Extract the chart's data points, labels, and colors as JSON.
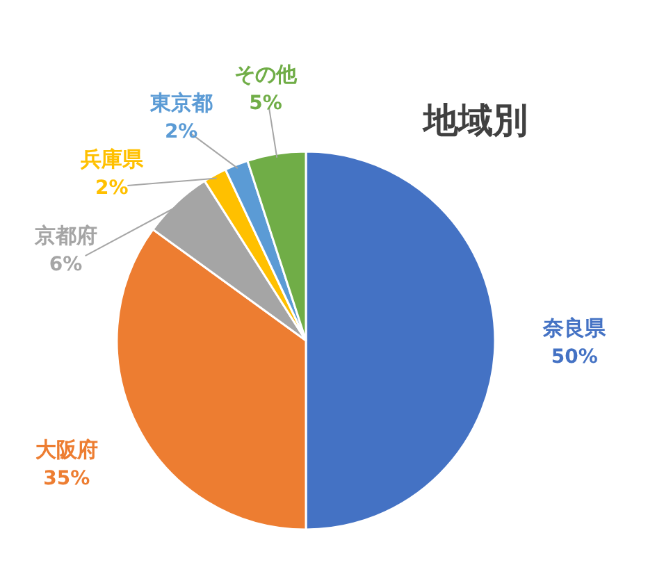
{
  "chart_data": {
    "type": "pie",
    "title": "地域別",
    "categories": [
      "奈良県",
      "大阪府",
      "京都府",
      "兵庫県",
      "東京都",
      "その他"
    ],
    "values": [
      50,
      35,
      6,
      2,
      2,
      5
    ],
    "colors": [
      "#4472c4",
      "#ed7d31",
      "#a5a5a5",
      "#ffc000",
      "#5b9bd5",
      "#70ad47"
    ],
    "value_labels": [
      "50%",
      "35%",
      "6%",
      "2%",
      "2%",
      "5%"
    ]
  }
}
